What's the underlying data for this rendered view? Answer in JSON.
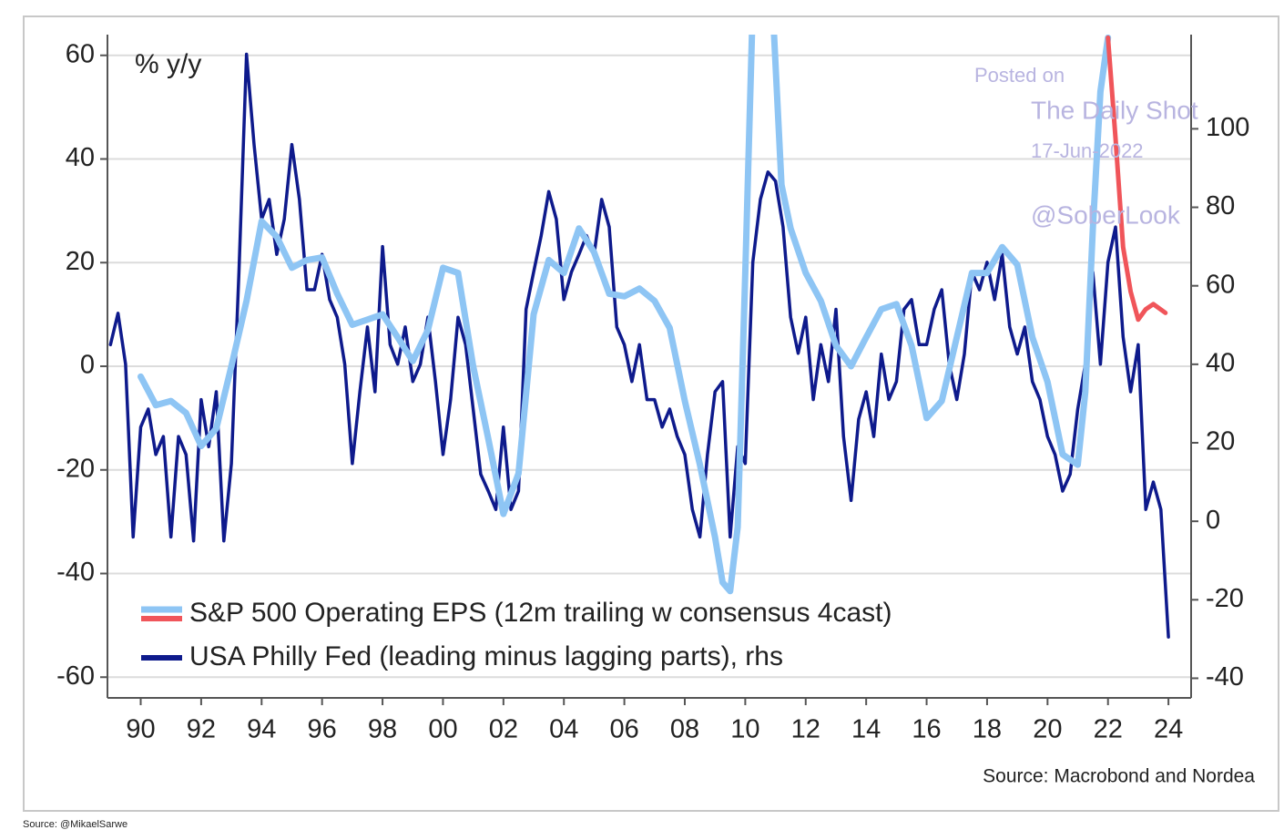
{
  "chart_data": {
    "type": "line",
    "annotation": "% y/y",
    "source": "Source: Macrobond and Nordea",
    "credit": "Source: @MikaelSarwe",
    "watermark": [
      "Posted on",
      "The Daily Shot",
      "17-Jun-2022",
      "@SoberLook"
    ],
    "xlim": [
      1988.9,
      2024.75
    ],
    "xticks": [
      {
        "value": 1990,
        "label": "90"
      },
      {
        "value": 1992,
        "label": "92"
      },
      {
        "value": 1994,
        "label": "94"
      },
      {
        "value": 1996,
        "label": "96"
      },
      {
        "value": 1998,
        "label": "98"
      },
      {
        "value": 2000,
        "label": "00"
      },
      {
        "value": 2002,
        "label": "02"
      },
      {
        "value": 2004,
        "label": "04"
      },
      {
        "value": 2006,
        "label": "06"
      },
      {
        "value": 2008,
        "label": "08"
      },
      {
        "value": 2010,
        "label": "10"
      },
      {
        "value": 2012,
        "label": "12"
      },
      {
        "value": 2014,
        "label": "14"
      },
      {
        "value": 2016,
        "label": "16"
      },
      {
        "value": 2018,
        "label": "18"
      },
      {
        "value": 2020,
        "label": "20"
      },
      {
        "value": 2022,
        "label": "22"
      },
      {
        "value": 2024,
        "label": "24"
      }
    ],
    "ylim": [
      -64,
      64
    ],
    "yticks": [
      60,
      40,
      20,
      0,
      -20,
      -40,
      -60
    ],
    "y2lim": [
      -45,
      124
    ],
    "y2ticks": [
      100,
      80,
      60,
      40,
      20,
      0,
      -20,
      -40
    ],
    "grid": true,
    "legend": "bottom-left",
    "series": [
      {
        "name": "S&P 500 Operating EPS (12m trailing w consensus 4cast)",
        "color": "#8ec5f4",
        "x": [
          1990,
          1990.5,
          1991,
          1991.5,
          1992,
          1992.5,
          1993,
          1993.5,
          1994,
          1994.5,
          1995,
          1995.5,
          1996,
          1996.5,
          1997,
          1997.5,
          1998,
          1998.5,
          1999,
          1999.5,
          2000,
          2000.5,
          2001,
          2001.5,
          2002,
          2002.5,
          2003,
          2003.5,
          2004,
          2004.5,
          2005,
          2005.5,
          2006,
          2006.5,
          2007,
          2007.5,
          2008,
          2008.5,
          2009,
          2009.25,
          2009.5,
          2009.75,
          2010,
          2010.3,
          2010.6,
          2010.9,
          2011.2,
          2011.5,
          2012,
          2012.5,
          2013,
          2013.5,
          2014,
          2014.5,
          2015,
          2015.5,
          2016,
          2016.5,
          2017,
          2017.5,
          2018,
          2018.5,
          2019,
          2019.5,
          2020,
          2020.5,
          2021,
          2021.25,
          2021.5,
          2021.75,
          2022
        ],
        "values": [
          -2,
          -7.5,
          -6.7,
          -9,
          -15.4,
          -12,
          0,
          12.6,
          28,
          25,
          19,
          20.5,
          21,
          14,
          8,
          9,
          10,
          5.6,
          1,
          7,
          19,
          18,
          0,
          -14,
          -28.5,
          -20.7,
          10,
          20.5,
          18,
          26.6,
          22,
          14,
          13.5,
          15,
          12.6,
          7.4,
          -6.7,
          -19,
          -33,
          -41.7,
          -43.4,
          -31,
          18,
          80,
          90,
          70,
          35,
          26.6,
          18,
          12.6,
          4,
          0,
          5.6,
          11,
          12,
          4,
          -10,
          -6.7,
          5.6,
          18,
          18,
          23,
          19.6,
          5.6,
          -3,
          -17,
          -19,
          -5,
          26.6,
          53,
          63.4
        ]
      },
      {
        "color": "#f0555a",
        "x": [
          2022,
          2022.25,
          2022.5,
          2022.75,
          2023,
          2023.25,
          2023.5,
          2023.9
        ],
        "values": [
          63.4,
          44,
          23,
          14.4,
          9,
          11,
          12,
          10.3
        ]
      },
      {
        "name": "USA Philly Fed (leading minus lagging parts), rhs",
        "color": "#0e1a8c",
        "axis": "y2",
        "x": [
          1989,
          1989.25,
          1989.5,
          1989.75,
          1990,
          1990.25,
          1990.5,
          1990.75,
          1991,
          1991.25,
          1991.5,
          1991.75,
          1992,
          1992.25,
          1992.5,
          1992.75,
          1993,
          1993.25,
          1993.5,
          1993.75,
          1994,
          1994.25,
          1994.5,
          1994.75,
          1995,
          1995.25,
          1995.5,
          1995.75,
          1996,
          1996.25,
          1996.5,
          1996.75,
          1997,
          1997.25,
          1997.5,
          1997.75,
          1998,
          1998.25,
          1998.5,
          1998.75,
          1999,
          1999.25,
          1999.5,
          1999.75,
          2000,
          2000.25,
          2000.5,
          2000.75,
          2001,
          2001.25,
          2001.5,
          2001.75,
          2002,
          2002.25,
          2002.5,
          2002.75,
          2003,
          2003.25,
          2003.5,
          2003.75,
          2004,
          2004.25,
          2004.5,
          2004.75,
          2005,
          2005.25,
          2005.5,
          2005.75,
          2006,
          2006.25,
          2006.5,
          2006.75,
          2007,
          2007.25,
          2007.5,
          2007.75,
          2008,
          2008.25,
          2008.5,
          2008.75,
          2009,
          2009.25,
          2009.5,
          2009.75,
          2010,
          2010.25,
          2010.5,
          2010.75,
          2011,
          2011.25,
          2011.5,
          2011.75,
          2012,
          2012.25,
          2012.5,
          2012.75,
          2013,
          2013.25,
          2013.5,
          2013.75,
          2014,
          2014.25,
          2014.5,
          2014.75,
          2015,
          2015.25,
          2015.5,
          2015.75,
          2016,
          2016.25,
          2016.5,
          2016.75,
          2017,
          2017.25,
          2017.5,
          2017.75,
          2018,
          2018.25,
          2018.5,
          2018.75,
          2019,
          2019.25,
          2019.5,
          2019.75,
          2020,
          2020.25,
          2020.5,
          2020.75,
          2021,
          2021.25,
          2021.5,
          2021.75,
          2022,
          2022.25,
          2022.5,
          2022.75,
          2023,
          2023.25,
          2023.5,
          2023.75,
          2024
        ],
        "values": [
          45,
          53,
          40,
          -4,
          24,
          28.6,
          17,
          21.6,
          -4,
          21.6,
          17,
          -5,
          31,
          19,
          33,
          -5,
          14.7,
          63.5,
          119,
          96,
          77,
          82,
          68,
          77,
          96,
          82,
          59,
          59,
          68,
          56.5,
          52,
          40,
          14.7,
          33,
          49.5,
          33,
          70,
          45,
          40,
          49.5,
          35.6,
          40,
          52,
          35.6,
          17,
          31,
          52,
          45,
          28.6,
          12,
          7.7,
          3,
          24,
          3,
          7.7,
          54,
          63.5,
          72.8,
          84,
          77,
          56.5,
          63.5,
          68,
          72.8,
          68,
          82,
          75,
          49.5,
          45,
          35.6,
          45,
          31,
          31,
          24,
          28.6,
          21.6,
          17,
          3,
          -4,
          17,
          33,
          35.6,
          -4,
          19,
          14.7,
          66,
          82,
          89,
          86.7,
          75,
          52,
          42.8,
          52,
          31,
          45,
          35.6,
          54,
          21.6,
          5.3,
          26,
          33,
          21.6,
          42.6,
          31,
          35.6,
          54,
          56.5,
          45,
          45,
          54,
          59,
          40,
          31,
          42.6,
          63.5,
          59,
          66,
          56.5,
          68,
          49.5,
          42.6,
          49.5,
          35.6,
          31,
          21.6,
          17,
          7.7,
          12,
          28.6,
          40,
          63.5,
          40,
          66,
          75,
          47,
          33,
          45,
          3,
          10,
          3,
          -29.5
        ]
      }
    ]
  }
}
